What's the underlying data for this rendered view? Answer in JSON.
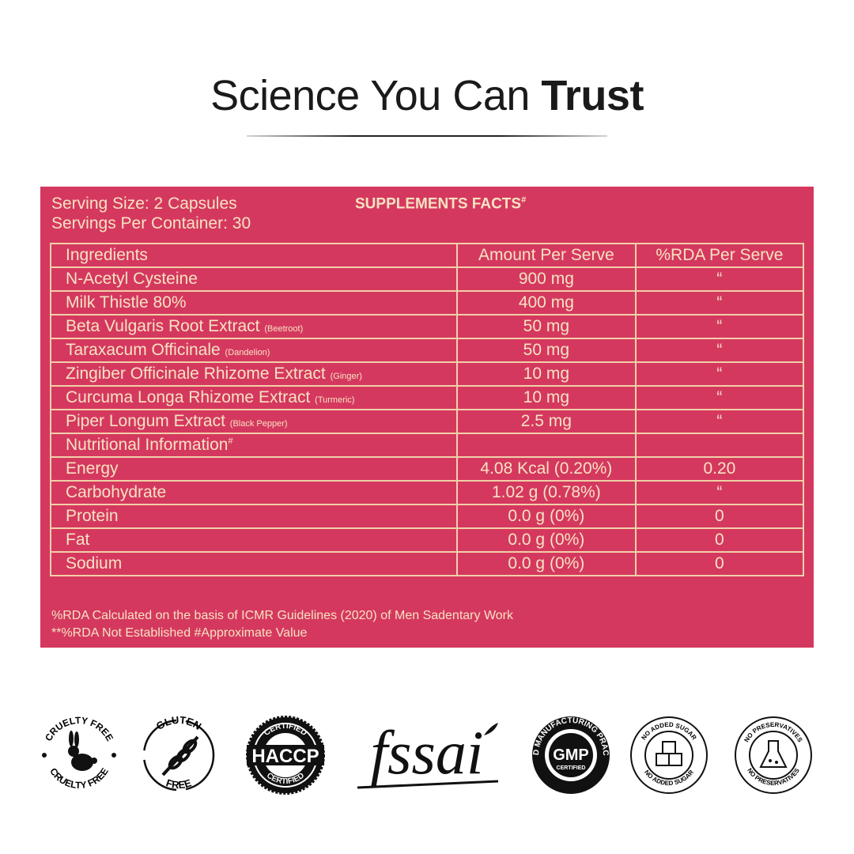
{
  "header": {
    "title": "Science You Can",
    "title_bold": "Trust"
  },
  "facts": {
    "serving_size": "Serving Size: 2 Capsules",
    "servings_per_container": "Servings Per Container: 30",
    "title": "SUPPLEMENTS FACTS",
    "title_mark": "#",
    "table": {
      "header": [
        "Ingredients",
        "Amount Per Serve",
        "%RDA Per Serve"
      ],
      "rows": [
        {
          "name": "N-Acetyl Cysteine",
          "amount": "900 mg",
          "rda": "“"
        },
        {
          "name": "Milk Thistle 80%",
          "amount": "400 mg",
          "rda": "“"
        },
        {
          "name": "Beta Vulgaris Root Extract",
          "note": "(Beetroot)",
          "amount": "50 mg",
          "rda": "“"
        },
        {
          "name": "Taraxacum Officinale",
          "note": "(Dandelion)",
          "amount": "50 mg",
          "rda": "“"
        },
        {
          "name": "Zingiber Officinale Rhizome Extract",
          "note": "(Ginger)",
          "amount": "10 mg",
          "rda": "“"
        },
        {
          "name": "Curcuma Longa Rhizome Extract",
          "note": "(Turmeric)",
          "amount": "10 mg",
          "rda": "“"
        },
        {
          "name": "Piper Longum Extract",
          "note": "(Black Pepper)",
          "amount": "2.5 mg",
          "rda": "“"
        },
        {
          "name": "Nutritional Information",
          "mark": "#"
        },
        {
          "name": "Energy",
          "amount": "4.08 Kcal (0.20%)",
          "rda": "0.20"
        },
        {
          "name": "Carbohydrate",
          "amount": "1.02 g (0.78%)",
          "rda": "“"
        },
        {
          "name": "Protein",
          "amount": "0.0 g (0%)",
          "rda": "0"
        },
        {
          "name": "Fat",
          "amount": "0.0 g (0%)",
          "rda": "0"
        },
        {
          "name": "Sodium",
          "amount": "0.0 g (0%)",
          "rda": "0"
        }
      ]
    },
    "footnotes": [
      "%RDA Calculated on the basis of ICMR Guidelines (2020) of Men Sadentary Work",
      "**%RDA Not Established #Approximate Value"
    ]
  },
  "badges": [
    {
      "top": "CRUELTY FREE",
      "bottom": "CRUELTY FREE"
    },
    {
      "top": "GLUTEN",
      "bottom": "FREE"
    },
    {
      "top": "CERTIFIED",
      "center": "HACCP",
      "bottom": "CERTIFIED"
    },
    {
      "center": "fssai"
    },
    {
      "ring": "GOOD MANUFACTURING PRACTICE",
      "center": "GMP",
      "sub": "CERTIFIED"
    },
    {
      "top": "NO ADDED SUGAR",
      "bottom": "NO ADDED SUGAR"
    },
    {
      "top": "NO PRESERVATIVES",
      "bottom": "NO PRESERVATIVES"
    }
  ]
}
